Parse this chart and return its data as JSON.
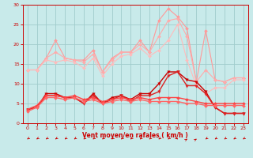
{
  "x": [
    0,
    1,
    2,
    3,
    4,
    5,
    6,
    7,
    8,
    9,
    10,
    11,
    12,
    13,
    14,
    15,
    16,
    17,
    18,
    19,
    20,
    21,
    22,
    23
  ],
  "series": [
    {
      "name": "gust_top",
      "color": "#ff9999",
      "lw": 0.8,
      "marker": "D",
      "markersize": 2,
      "values": [
        13.5,
        13.5,
        16.5,
        21.0,
        16.5,
        16.0,
        16.0,
        18.5,
        13.0,
        16.5,
        18.0,
        18.0,
        21.0,
        18.0,
        26.0,
        29.0,
        27.0,
        24.0,
        10.5,
        23.5,
        11.0,
        10.5,
        11.5,
        11.5
      ]
    },
    {
      "name": "gust_mid",
      "color": "#ffaaaa",
      "lw": 0.8,
      "marker": "D",
      "markersize": 2,
      "values": [
        13.5,
        13.5,
        16.5,
        18.0,
        16.5,
        16.0,
        15.5,
        17.5,
        13.0,
        16.0,
        18.0,
        18.0,
        20.0,
        18.0,
        22.0,
        26.0,
        26.5,
        22.0,
        10.5,
        13.5,
        11.0,
        10.5,
        11.5,
        11.5
      ]
    },
    {
      "name": "gust_low",
      "color": "#ffbbbb",
      "lw": 0.8,
      "marker": "D",
      "markersize": 2,
      "values": [
        13.5,
        13.5,
        16.0,
        15.5,
        16.0,
        15.5,
        14.0,
        16.5,
        12.0,
        15.0,
        17.0,
        17.5,
        19.0,
        17.0,
        18.5,
        21.0,
        25.0,
        16.0,
        9.5,
        7.5,
        9.0,
        9.0,
        11.0,
        11.0
      ]
    },
    {
      "name": "wind_max",
      "color": "#cc0000",
      "lw": 1.0,
      "marker": "v",
      "markersize": 2.5,
      "values": [
        3.5,
        4.0,
        7.5,
        7.5,
        6.5,
        6.5,
        5.0,
        7.5,
        5.0,
        6.5,
        7.0,
        6.0,
        7.5,
        7.5,
        10.0,
        13.0,
        13.0,
        11.0,
        10.5,
        8.0,
        4.0,
        2.5,
        2.5,
        2.5
      ]
    },
    {
      "name": "wind_upper",
      "color": "#dd2222",
      "lw": 1.0,
      "marker": "v",
      "markersize": 2.5,
      "values": [
        3.5,
        4.0,
        7.0,
        7.0,
        6.5,
        6.5,
        5.0,
        7.0,
        5.0,
        6.0,
        7.0,
        5.5,
        7.0,
        7.0,
        8.0,
        12.0,
        13.0,
        9.5,
        9.5,
        7.5,
        4.0,
        2.5,
        2.5,
        2.5
      ]
    },
    {
      "name": "wind_mid",
      "color": "#ff4444",
      "lw": 1.0,
      "marker": "D",
      "markersize": 2,
      "values": [
        3.5,
        4.5,
        7.0,
        7.0,
        6.5,
        7.0,
        6.0,
        6.5,
        5.5,
        6.0,
        6.5,
        6.0,
        6.5,
        6.0,
        6.5,
        6.5,
        6.5,
        6.0,
        5.5,
        5.0,
        5.0,
        5.0,
        5.0,
        5.0
      ]
    },
    {
      "name": "wind_base",
      "color": "#ff6666",
      "lw": 1.0,
      "marker": "D",
      "markersize": 2,
      "values": [
        3.0,
        4.0,
        6.5,
        6.5,
        6.0,
        6.5,
        5.5,
        6.0,
        5.0,
        5.5,
        6.0,
        5.5,
        6.0,
        5.5,
        5.5,
        5.5,
        5.5,
        5.0,
        5.0,
        4.5,
        4.5,
        4.5,
        4.5,
        4.5
      ]
    }
  ],
  "wind_dirs": [
    225,
    225,
    225,
    225,
    225,
    225,
    225,
    225,
    225,
    225,
    225,
    225,
    225,
    225,
    225,
    225,
    315,
    45,
    45,
    225,
    225,
    225,
    225,
    225
  ],
  "xlabel": "Vent moyen/en rafales ( km/h )",
  "xlim": [
    -0.5,
    23.5
  ],
  "ylim": [
    0,
    30
  ],
  "yticks": [
    0,
    5,
    10,
    15,
    20,
    25,
    30
  ],
  "xticks": [
    0,
    1,
    2,
    3,
    4,
    5,
    6,
    7,
    8,
    9,
    10,
    11,
    12,
    13,
    14,
    15,
    16,
    17,
    18,
    19,
    20,
    21,
    22,
    23
  ],
  "bg_color": "#c8eaea",
  "grid_color": "#a0cccc",
  "tick_color": "#cc0000",
  "label_color": "#cc0000"
}
